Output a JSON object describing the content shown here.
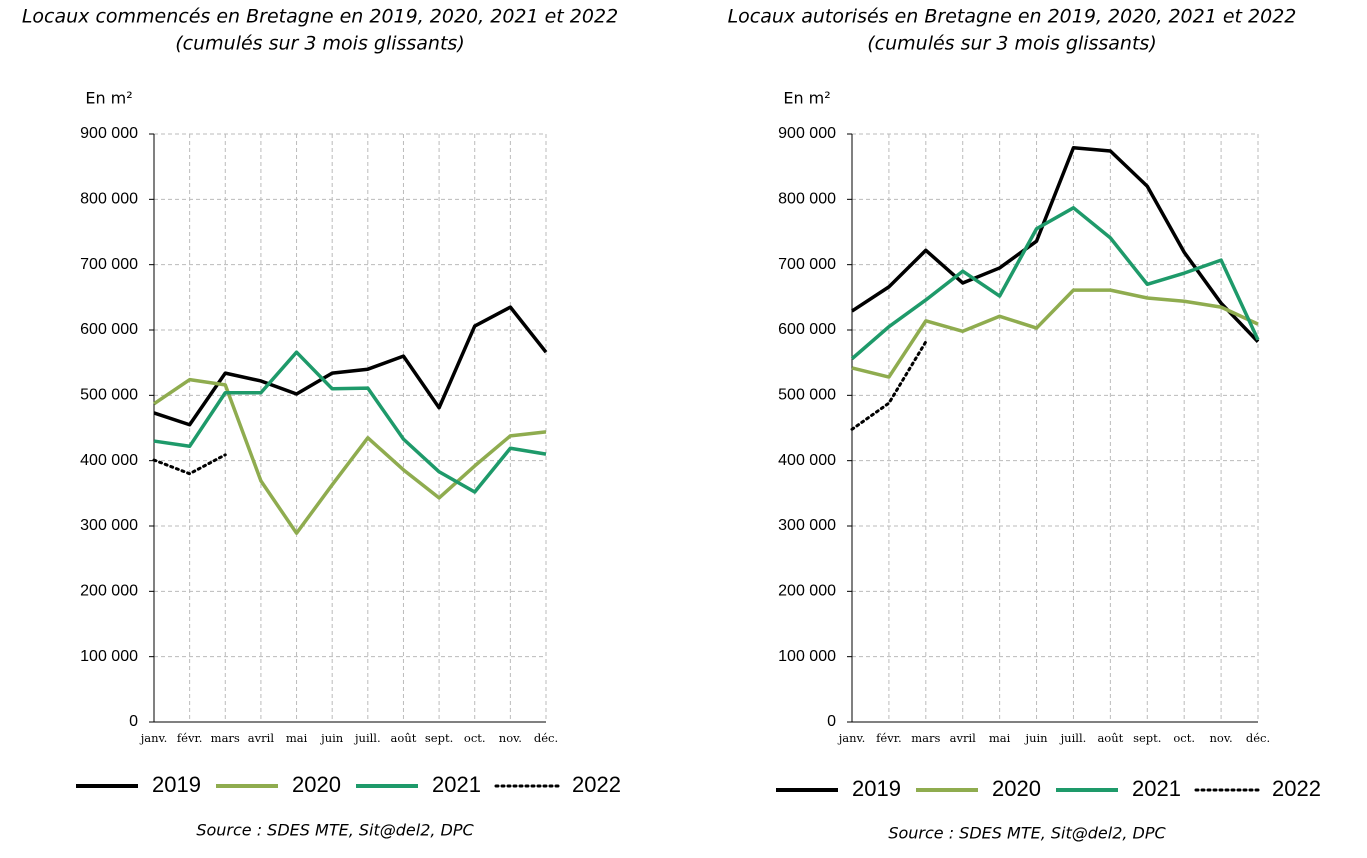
{
  "chart_data": [
    {
      "type": "line",
      "title": "Locaux commencés en Bretagne en 2019, 2020, 2021 et 2022",
      "subtitle": "(cumulés sur 3 mois glissants)",
      "y_label": "En m²",
      "source": "Source : SDES MTE, Sit@del2, DPC",
      "categories": [
        "janv.",
        "févr.",
        "mars",
        "avril",
        "mai",
        "juin",
        "juill.",
        "août",
        "sept.",
        "oct.",
        "nov.",
        "déc."
      ],
      "ylim": [
        0,
        900000
      ],
      "yticks": [
        0,
        {
          "value": 100000,
          "label": "100 000"
        },
        {
          "value": 200000,
          "label": "200 000"
        },
        {
          "value": 300000,
          "label": "300 000"
        },
        {
          "value": 400000,
          "label": "400 000"
        },
        {
          "value": 500000,
          "label": "500 000"
        },
        {
          "value": 600000,
          "label": "600 000"
        },
        {
          "value": 700000,
          "label": "700 000"
        },
        {
          "value": 800000,
          "label": "800 000"
        },
        {
          "value": 900000,
          "label": "900 000"
        }
      ],
      "grid": true,
      "legend": "bottom",
      "series": [
        {
          "name": "2019",
          "color": "#000000",
          "linestyle": "solid",
          "values": [
            473000,
            455000,
            534000,
            522000,
            502000,
            534000,
            540000,
            560000,
            481000,
            606000,
            635000,
            566000
          ]
        },
        {
          "name": "2020",
          "color": "#8fac4f",
          "linestyle": "solid",
          "values": [
            487000,
            524000,
            516000,
            369000,
            289000,
            363000,
            435000,
            386000,
            343000,
            392000,
            438000,
            444000
          ]
        },
        {
          "name": "2021",
          "color": "#1e9a6a",
          "linestyle": "solid",
          "values": [
            430000,
            422000,
            504000,
            504000,
            566000,
            510000,
            511000,
            433000,
            383000,
            352000,
            419000,
            410000
          ]
        },
        {
          "name": "2022",
          "color": "#000000",
          "linestyle": "dotted",
          "values": [
            401000,
            380000,
            409000,
            null,
            null,
            null,
            null,
            null,
            null,
            null,
            null,
            null
          ]
        }
      ]
    },
    {
      "type": "line",
      "title": "Locaux autorisés en Bretagne en 2019, 2020, 2021 et 2022",
      "subtitle": "(cumulés sur 3 mois glissants)",
      "y_label": "En m²",
      "source": "Source : SDES MTE, Sit@del2, DPC",
      "categories": [
        "janv.",
        "févr.",
        "mars",
        "avril",
        "mai",
        "juin",
        "juill.",
        "août",
        "sept.",
        "oct.",
        "nov.",
        "déc."
      ],
      "ylim": [
        0,
        900000
      ],
      "yticks": [
        0,
        {
          "value": 100000,
          "label": "100 000"
        },
        {
          "value": 200000,
          "label": "200 000"
        },
        {
          "value": 300000,
          "label": "300 000"
        },
        {
          "value": 400000,
          "label": "400 000"
        },
        {
          "value": 500000,
          "label": "500 000"
        },
        {
          "value": 600000,
          "label": "600 000"
        },
        {
          "value": 700000,
          "label": "700 000"
        },
        {
          "value": 800000,
          "label": "800 000"
        },
        {
          "value": 900000,
          "label": "900 000"
        }
      ],
      "grid": true,
      "legend": "bottom",
      "series": [
        {
          "name": "2019",
          "color": "#000000",
          "linestyle": "solid",
          "values": [
            629000,
            666000,
            722000,
            672000,
            695000,
            736000,
            879000,
            874000,
            820000,
            719000,
            641000,
            582000
          ]
        },
        {
          "name": "2020",
          "color": "#8fac4f",
          "linestyle": "solid",
          "values": [
            542000,
            528000,
            614000,
            598000,
            621000,
            603000,
            661000,
            661000,
            649000,
            644000,
            635000,
            609000
          ]
        },
        {
          "name": "2021",
          "color": "#1e9a6a",
          "linestyle": "solid",
          "values": [
            556000,
            605000,
            646000,
            690000,
            652000,
            755000,
            787000,
            741000,
            670000,
            687000,
            707000,
            585000
          ]
        },
        {
          "name": "2022",
          "color": "#000000",
          "linestyle": "dotted",
          "values": [
            448000,
            488000,
            582000,
            null,
            null,
            null,
            null,
            null,
            null,
            null,
            null,
            null
          ]
        }
      ]
    }
  ]
}
